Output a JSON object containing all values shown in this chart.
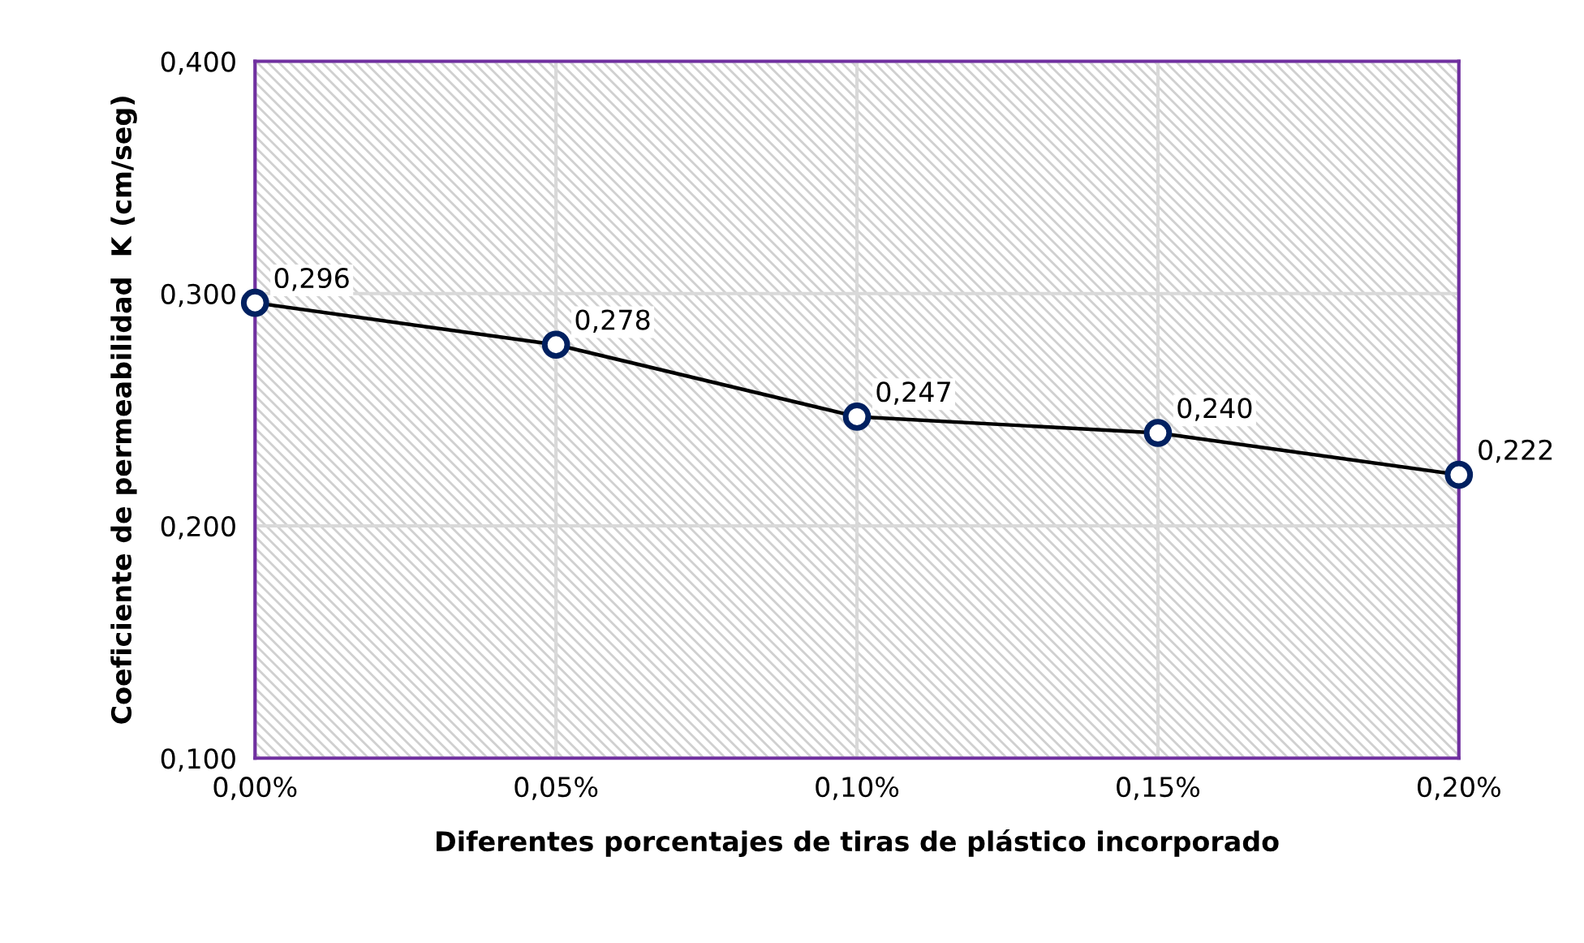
{
  "chart_data": {
    "type": "line",
    "xlabel": "Diferentes porcentajes de tiras de plástico incorporado",
    "ylabel": "Coeficiente de permeabilidad  K (cm/seg)",
    "x": [
      0,
      0.05,
      0.1,
      0.15,
      0.2
    ],
    "series": [
      {
        "color": "#000000",
        "values": [
          0.296,
          0.278,
          0.247,
          0.24,
          0.222
        ],
        "value_labels": [
          "0,296",
          "0,278",
          "0,247",
          "0,240",
          "0,222"
        ]
      }
    ],
    "xlim": [
      0,
      0.2
    ],
    "xticks": [
      {
        "value": 0,
        "label": "0,00%"
      },
      {
        "value": 0.05,
        "label": "0,05%"
      },
      {
        "value": 0.1,
        "label": "0,10%"
      },
      {
        "value": 0.15,
        "label": "0,15%"
      },
      {
        "value": 0.2,
        "label": "0,20%"
      }
    ],
    "ylim": [
      0.1,
      0.4
    ],
    "yticks": [
      {
        "value": 0.1,
        "label": "0,100"
      },
      {
        "value": 0.2,
        "label": "0,200"
      },
      {
        "value": 0.3,
        "label": "0,300"
      },
      {
        "value": 0.4,
        "label": "0,400"
      }
    ],
    "grid": true,
    "marker": "circle",
    "line_style": "solid"
  }
}
